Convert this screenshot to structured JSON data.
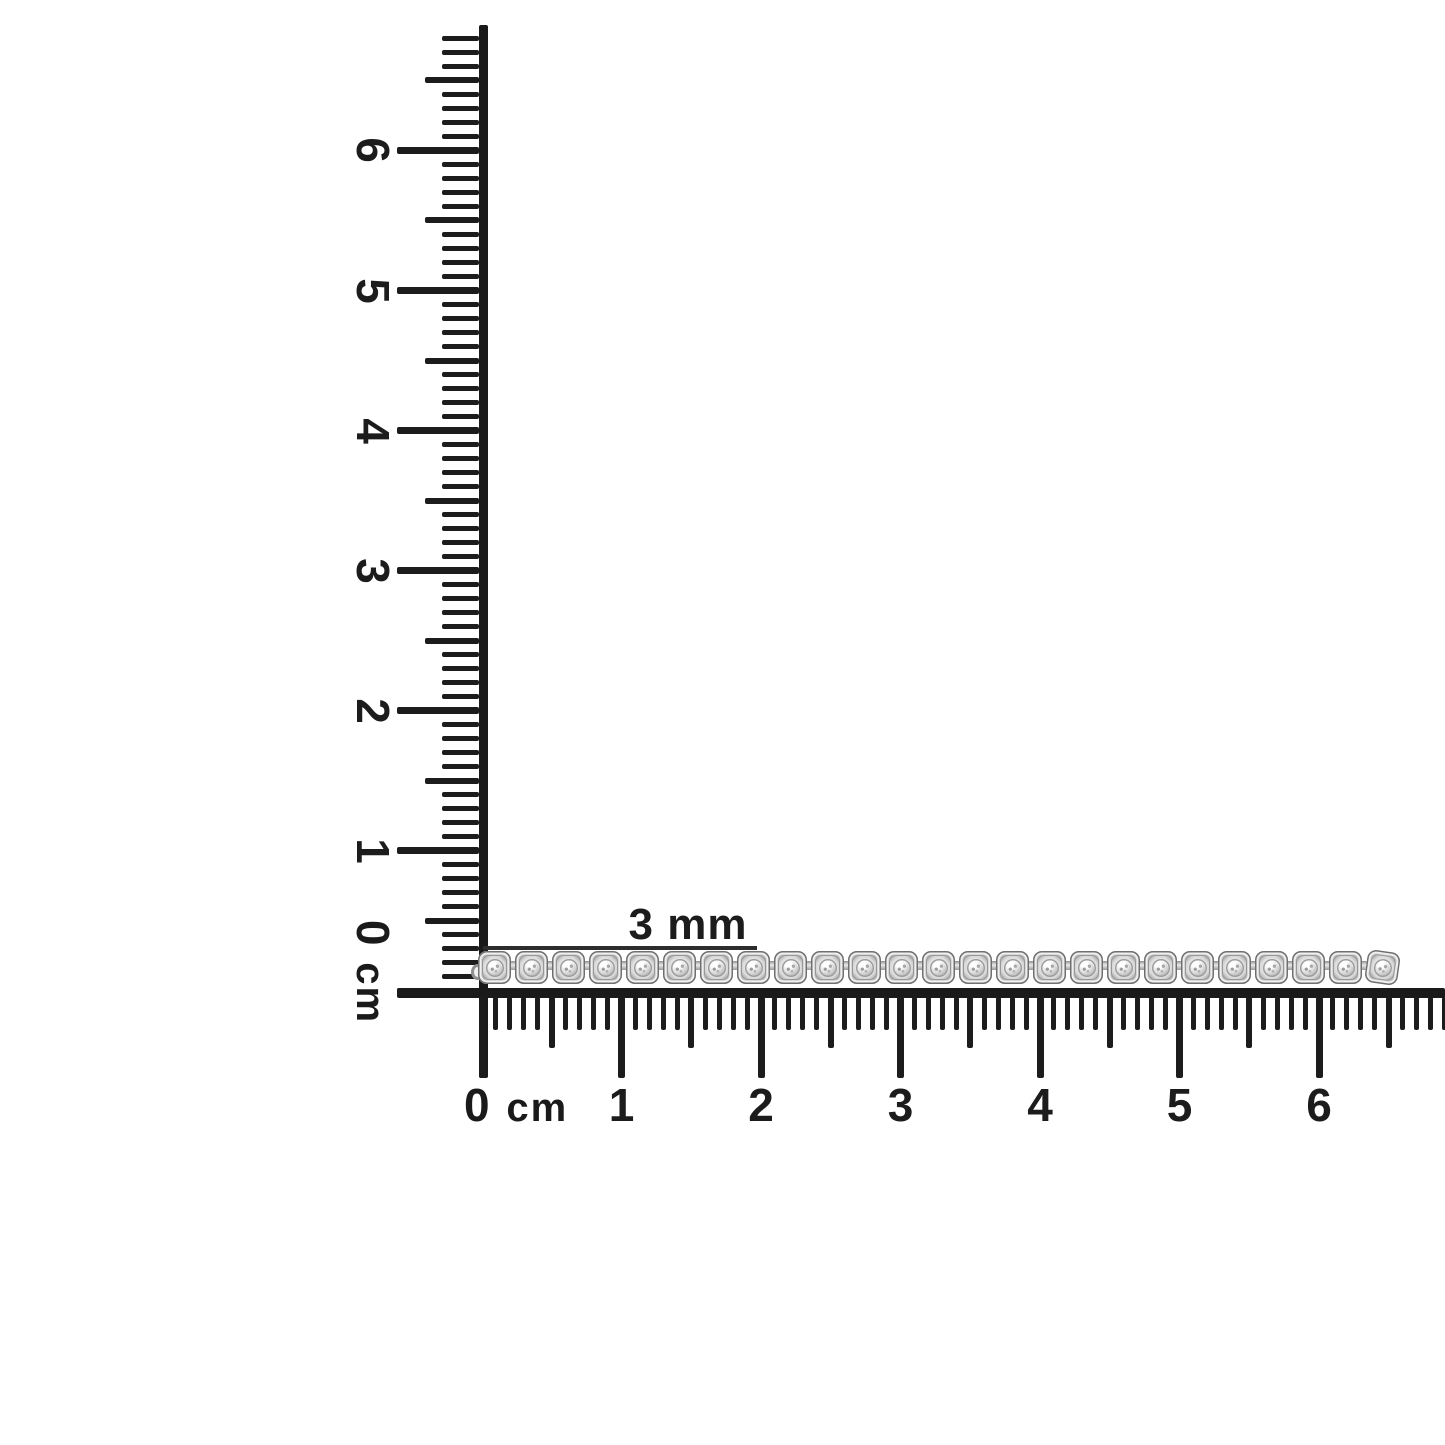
{
  "annotation": {
    "label": "3 mm"
  },
  "vertical_ruler": {
    "unit": "cm",
    "zero_value": "0",
    "zero_unit": "cm",
    "tick_labels": [
      "1",
      "2",
      "3",
      "4",
      "5",
      "6"
    ],
    "mm_tick_count": 68
  },
  "horizontal_ruler": {
    "unit": "cm",
    "zero_value": "0",
    "zero_unit": "cm",
    "tick_labels": [
      "1",
      "2",
      "3",
      "4",
      "5",
      "6"
    ],
    "mm_tick_count": 69
  },
  "bracelet": {
    "link_count": 25
  },
  "colors": {
    "background": "#ffffff",
    "ink": "#1a1a1a",
    "metal_dark": "#6f6f6f",
    "metal_mid": "#c9c9c9",
    "metal_light": "#f2f2f2"
  }
}
